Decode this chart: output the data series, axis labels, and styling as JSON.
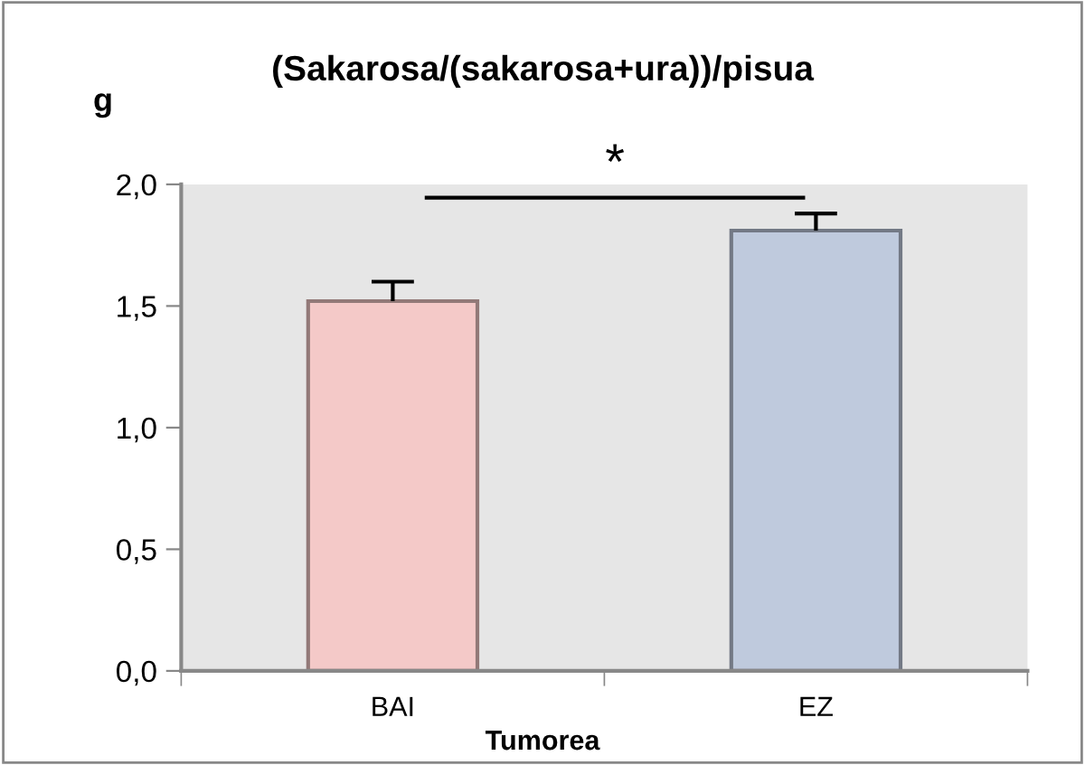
{
  "chart_data": {
    "type": "bar",
    "title": "(Sakarosa/(sakarosa+ura))/pisua",
    "ylabel": "g",
    "xlabel": "Tumorea",
    "categories": [
      "BAI",
      "EZ"
    ],
    "values": [
      1.52,
      1.81
    ],
    "errors": [
      0.08,
      0.07
    ],
    "colors": [
      "#f4c9c8",
      "#bfcadd"
    ],
    "ylim": [
      0,
      2.0
    ],
    "yticks": [
      {
        "value": 0,
        "label": "0,0"
      },
      {
        "value": 0.5,
        "label": "0,5"
      },
      {
        "value": 1.0,
        "label": "1,0"
      },
      {
        "value": 1.5,
        "label": "1,5"
      },
      {
        "value": 2.0,
        "label": "2,0"
      }
    ],
    "annotations": [
      "*"
    ],
    "grid": false
  }
}
